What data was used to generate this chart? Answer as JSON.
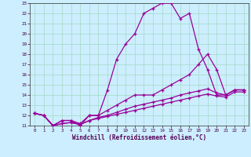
{
  "background_color": "#cceeff",
  "grid_color": "#aaddcc",
  "line_color": "#990099",
  "xlabel": "Windchill (Refroidissement éolien,°C)",
  "xlim": [
    -0.5,
    23.5
  ],
  "ylim": [
    11,
    23
  ],
  "xticks": [
    0,
    1,
    2,
    3,
    4,
    5,
    6,
    7,
    8,
    9,
    10,
    11,
    12,
    13,
    14,
    15,
    16,
    17,
    18,
    19,
    20,
    21,
    22,
    23
  ],
  "yticks": [
    11,
    12,
    13,
    14,
    15,
    16,
    17,
    18,
    19,
    20,
    21,
    22,
    23
  ],
  "s1_x": [
    0,
    1,
    2,
    3,
    4,
    5,
    6,
    7,
    8,
    9,
    10,
    11,
    12,
    13,
    14,
    15,
    16,
    17,
    18,
    19,
    20,
    21,
    22,
    23
  ],
  "s1_y": [
    12.2,
    12.0,
    11.0,
    11.5,
    11.5,
    11.0,
    12.0,
    12.0,
    14.5,
    17.5,
    19.0,
    20.0,
    22.0,
    22.5,
    23.0,
    23.0,
    21.5,
    22.0,
    18.5,
    16.5,
    14.0,
    14.0,
    14.5,
    14.5
  ],
  "s2_x": [
    0,
    1,
    2,
    3,
    4,
    5,
    6,
    7,
    8,
    9,
    10,
    11,
    12,
    13,
    14,
    15,
    16,
    17,
    18,
    19,
    20,
    21,
    22,
    23
  ],
  "s2_y": [
    12.2,
    12.0,
    11.0,
    11.5,
    11.5,
    11.2,
    12.0,
    12.0,
    12.5,
    13.0,
    13.5,
    14.0,
    14.0,
    14.0,
    14.5,
    15.0,
    15.5,
    16.0,
    17.0,
    18.0,
    16.5,
    14.0,
    14.5,
    14.5
  ],
  "s3_x": [
    0,
    1,
    2,
    3,
    4,
    5,
    6,
    7,
    8,
    9,
    10,
    11,
    12,
    13,
    14,
    15,
    16,
    17,
    18,
    19,
    20,
    21,
    22,
    23
  ],
  "s3_y": [
    12.2,
    12.0,
    11.0,
    11.2,
    11.3,
    11.1,
    11.5,
    11.8,
    12.0,
    12.3,
    12.6,
    12.9,
    13.1,
    13.3,
    13.5,
    13.7,
    14.0,
    14.2,
    14.4,
    14.6,
    14.2,
    14.0,
    14.5,
    14.5
  ],
  "s4_x": [
    0,
    1,
    2,
    3,
    4,
    5,
    6,
    7,
    8,
    9,
    10,
    11,
    12,
    13,
    14,
    15,
    16,
    17,
    18,
    19,
    20,
    21,
    22,
    23
  ],
  "s4_y": [
    12.2,
    12.0,
    11.0,
    11.2,
    11.3,
    11.1,
    11.5,
    11.7,
    11.9,
    12.1,
    12.3,
    12.5,
    12.7,
    12.9,
    13.1,
    13.3,
    13.5,
    13.7,
    13.9,
    14.1,
    13.9,
    13.8,
    14.3,
    14.3
  ]
}
